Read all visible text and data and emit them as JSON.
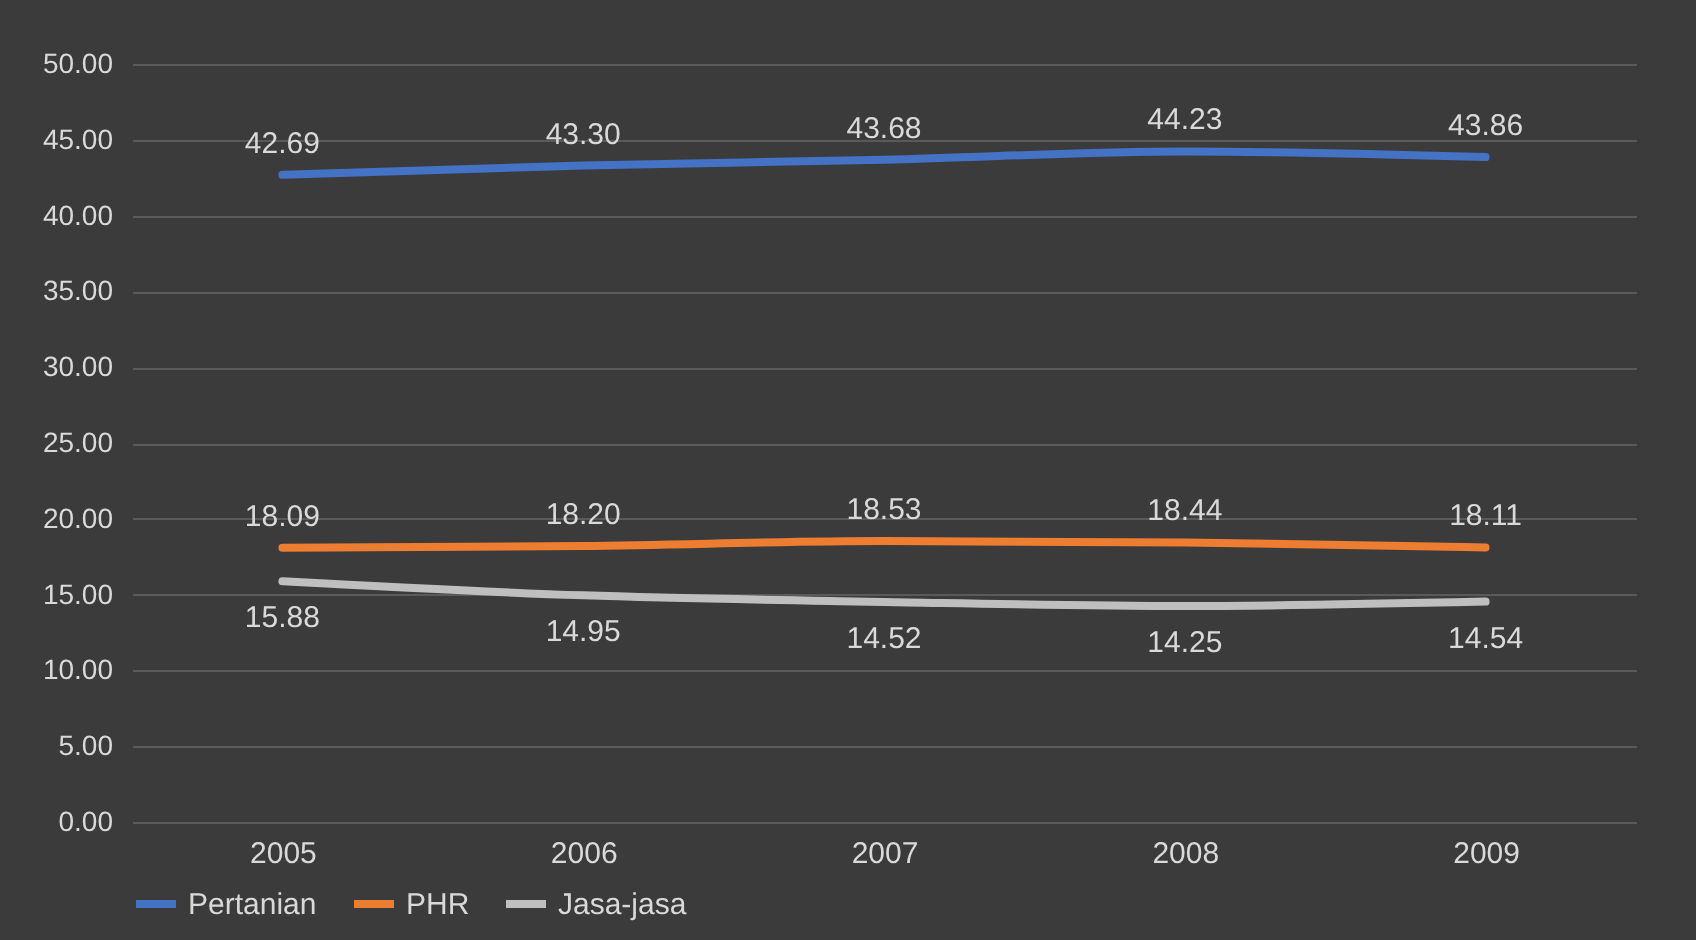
{
  "chart_data": {
    "type": "line",
    "categories": [
      "2005",
      "2006",
      "2007",
      "2008",
      "2009"
    ],
    "series": [
      {
        "name": "Pertanian",
        "color": "#4472c4",
        "values": [
          42.69,
          43.3,
          43.68,
          44.23,
          43.86
        ],
        "value_labels": [
          "42.69",
          "43.30",
          "43.68",
          "44.23",
          "43.86"
        ]
      },
      {
        "name": "PHR",
        "color": "#ed7d31",
        "values": [
          18.09,
          18.2,
          18.53,
          18.44,
          18.11
        ],
        "value_labels": [
          "18.09",
          "18.20",
          "18.53",
          "18.44",
          "18.11"
        ]
      },
      {
        "name": "Jasa-jasa",
        "color": "#bfbfbf",
        "values": [
          15.88,
          14.95,
          14.52,
          14.25,
          14.54
        ],
        "value_labels": [
          "15.88",
          "14.95",
          "14.52",
          "14.25",
          "14.54"
        ]
      }
    ],
    "ylim": [
      0,
      50
    ],
    "yticks": [
      {
        "value": 0,
        "label": "0.00"
      },
      {
        "value": 5,
        "label": "5.00"
      },
      {
        "value": 10,
        "label": "10.00"
      },
      {
        "value": 15,
        "label": "15.00"
      },
      {
        "value": 20,
        "label": "20.00"
      },
      {
        "value": 25,
        "label": "25.00"
      },
      {
        "value": 30,
        "label": "30.00"
      },
      {
        "value": 35,
        "label": "35.00"
      },
      {
        "value": 40,
        "label": "40.00"
      },
      {
        "value": 45,
        "label": "45.00"
      },
      {
        "value": 50,
        "label": "50.00"
      }
    ],
    "grid": "y",
    "legend": "bottom",
    "marker": "none",
    "line_style": "solid"
  }
}
